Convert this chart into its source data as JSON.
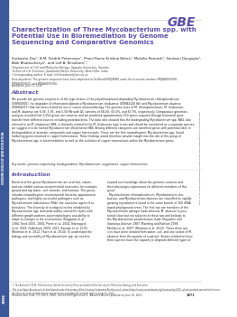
{
  "journal_abbr": "GBE",
  "journal_color": "#5B4EA6",
  "sidebar_color": "#3B5998",
  "sidebar_label": "GENOME BIOLOGY AND EVOLUTION",
  "sidebar_label2": "SMBE",
  "title": "Characterization of Three Mycobacterium spp. with\nPotential Use in Bioremediation by Genome\nSequencing and Comparative Genomics",
  "title_color": "#5B4EA6",
  "authors": "Sarbasho Das¹, B.M. Fredrik Pettersson¹, Phani Rama Krishna Behra¹, Malvika Ramesh², Santanu Dasgupta¹,\nAlok Bhattacharya², and Leif A. Kirsebom¹,⁺",
  "affil1": "¹Department of Cell and Molecular Biology, Uppsala University, Sweden",
  "affil2": "²School of Life Sciences, Jawaharlal Nehru University, New Delhi, India",
  "affil3": "⁺Corresponding author. E-mail: leif.kirsebom@icm.uu.se",
  "data_dep": "Data deposition: The genome sequences have been deposited at GenBank/DDBJ/EMBL under the accession numbers PRJNA00000000,\nPRJNA00000000, and PRJNA00000000.",
  "accepted": "Accepted: June 11, 2015",
  "abstract_title": "Abstract",
  "abstract_text": "We provide the genome sequences of the type strains of the polychlorophenol-degrading Mycobacterium chlorophenolicum\n(DSM43826), the degrader of chlorinated aliphatics Mycobacterium chubuense (DSM44140 Hb) and Mycobacterium obuense\n(DSM44075) that has been tested for use in cancer immunotherapy. The genome sizes of M. chlorophenolicum, M. chubuense,\nand M. obuense are 6.93, 5.95, and 5.58 Mb with GC contents of 68.4%, 69.2%, and 67.9%, respectively. Comparative genomics\nanalysis revealed that 3,254 genes are common and we predicted approximately 250 genes acquired through horizontal gene\ntransfer from different sources including proteobacteria. The data also showed that the biodegrading Mycobacterium spp. NB4, also\nreferred to as M. chubuense NB4, is distantly related to the M. chubuense type strain and should be considered as a separate species;\nwe suggest it to be named Mycobacterium ethylenerae NB4. Among different categories are identified genes with potential roles in\nbiodegradation of aromatic compounds and copper homeostasis. These are the first nonpathogenic Mycobacterium spp. found\nharboring genes involved in copper homeostasis. These findings would therefore provide insight into the role of this group of\nMycobacterium spp. in bioremediation as well as the evolution of copper homeostasis within the Mycobacterium genus.",
  "keywords": "Key words: genome sequencing, biodegradation, Mycobacterium, oxygenases, copper homeostasis.",
  "intro_title": "Introduction",
  "intro_text1": "Bacteria of the genus Mycobacterium are acid fast, robust,\nand can inhabit various environmental reservoirs, for example,\nground and tap water, soil, animals, and humans. This genus\nincludes nonpathogenic environmental bacteria, opportunistic\npathogens, and highly successful pathogens such as\nMycobacterium tuberculosis (Mtb), the causative agent of tu-\nberculosis. The diversity of ecological niches inhabited by\nMycobacterium spp. demands widely varied life styles with\ndifferent growth patterns and morphologies and ability to\nadapt to changes in the environment (Daggüton et al.\n1994; Torvk 2005, 2006; Pimm et al. 2004; Nannagvck\net al. 2005; Falkinham 2009, 2015; Kanada et al. 2009;\nWhitman et al. 2012; Thorn et al. 2014). To understand the\nbiology and versatility of Mycobacterium spp. we need to",
  "intro_text2": "expand our knowledge about the genomic contents and\ntheir phenotypic expressions for different members of this\ngenus.\n  Mycobacterium chlorophenolicum, Mycobacterium chu-\nbuense, and Mycobacterium obuense are classified as rapidly\ngrowing mycobacteria found in the same branch of 16S rRNA-\nbased phylogenetic trees. The first two are members of the\nMycobacterium sphagni clade whereas M. obuense is posi-\ntioned close but not adjacent to these two and belongs to\nthe Mycobacterium parafortuitum clade (Hayashin and\nSatonoya-Salonen 1987; Manthng and Karlson 1998;\nMcallan et al. 2007; Whitman et al. 2012). These three spe-\ncies have been isolated from water, soil, and one isolate of M.\nobuense from the sputum of a patient. Strains related to these\nthree species have the capacity to degrade different types of",
  "footer_copy": "© The Author(s) 2015. Published by Oxford University Press on behalf of the Society for Molecular Biology and Evolution.\nThis is an Open Access article distributed under the terms of the Creative Commons Attribution License (http://creativecommons.org/licenses/by/4.0/), which permits unrestricted reuse,\ndistribution, and reproduction in any medium, provided the original work is properly cited.",
  "footer_journal": "Genome Biol. Evol. 7(7):1871–1886.  doi:10.1093/gbe/evv111  Advance Access publication June 16, 2015",
  "footer_page": "1871",
  "right_sidebar_text": "Downloaded from http://gbe.oxfordjournals.org/ at Uppsala universitetsbibliotek on July 16, 2015",
  "bg_color": "#FFFFFF",
  "top_line_color": "#CCCCCC",
  "body_text_color": "#222222",
  "small_text_color": "#444444",
  "footer_line_color": "#AAAAAA"
}
